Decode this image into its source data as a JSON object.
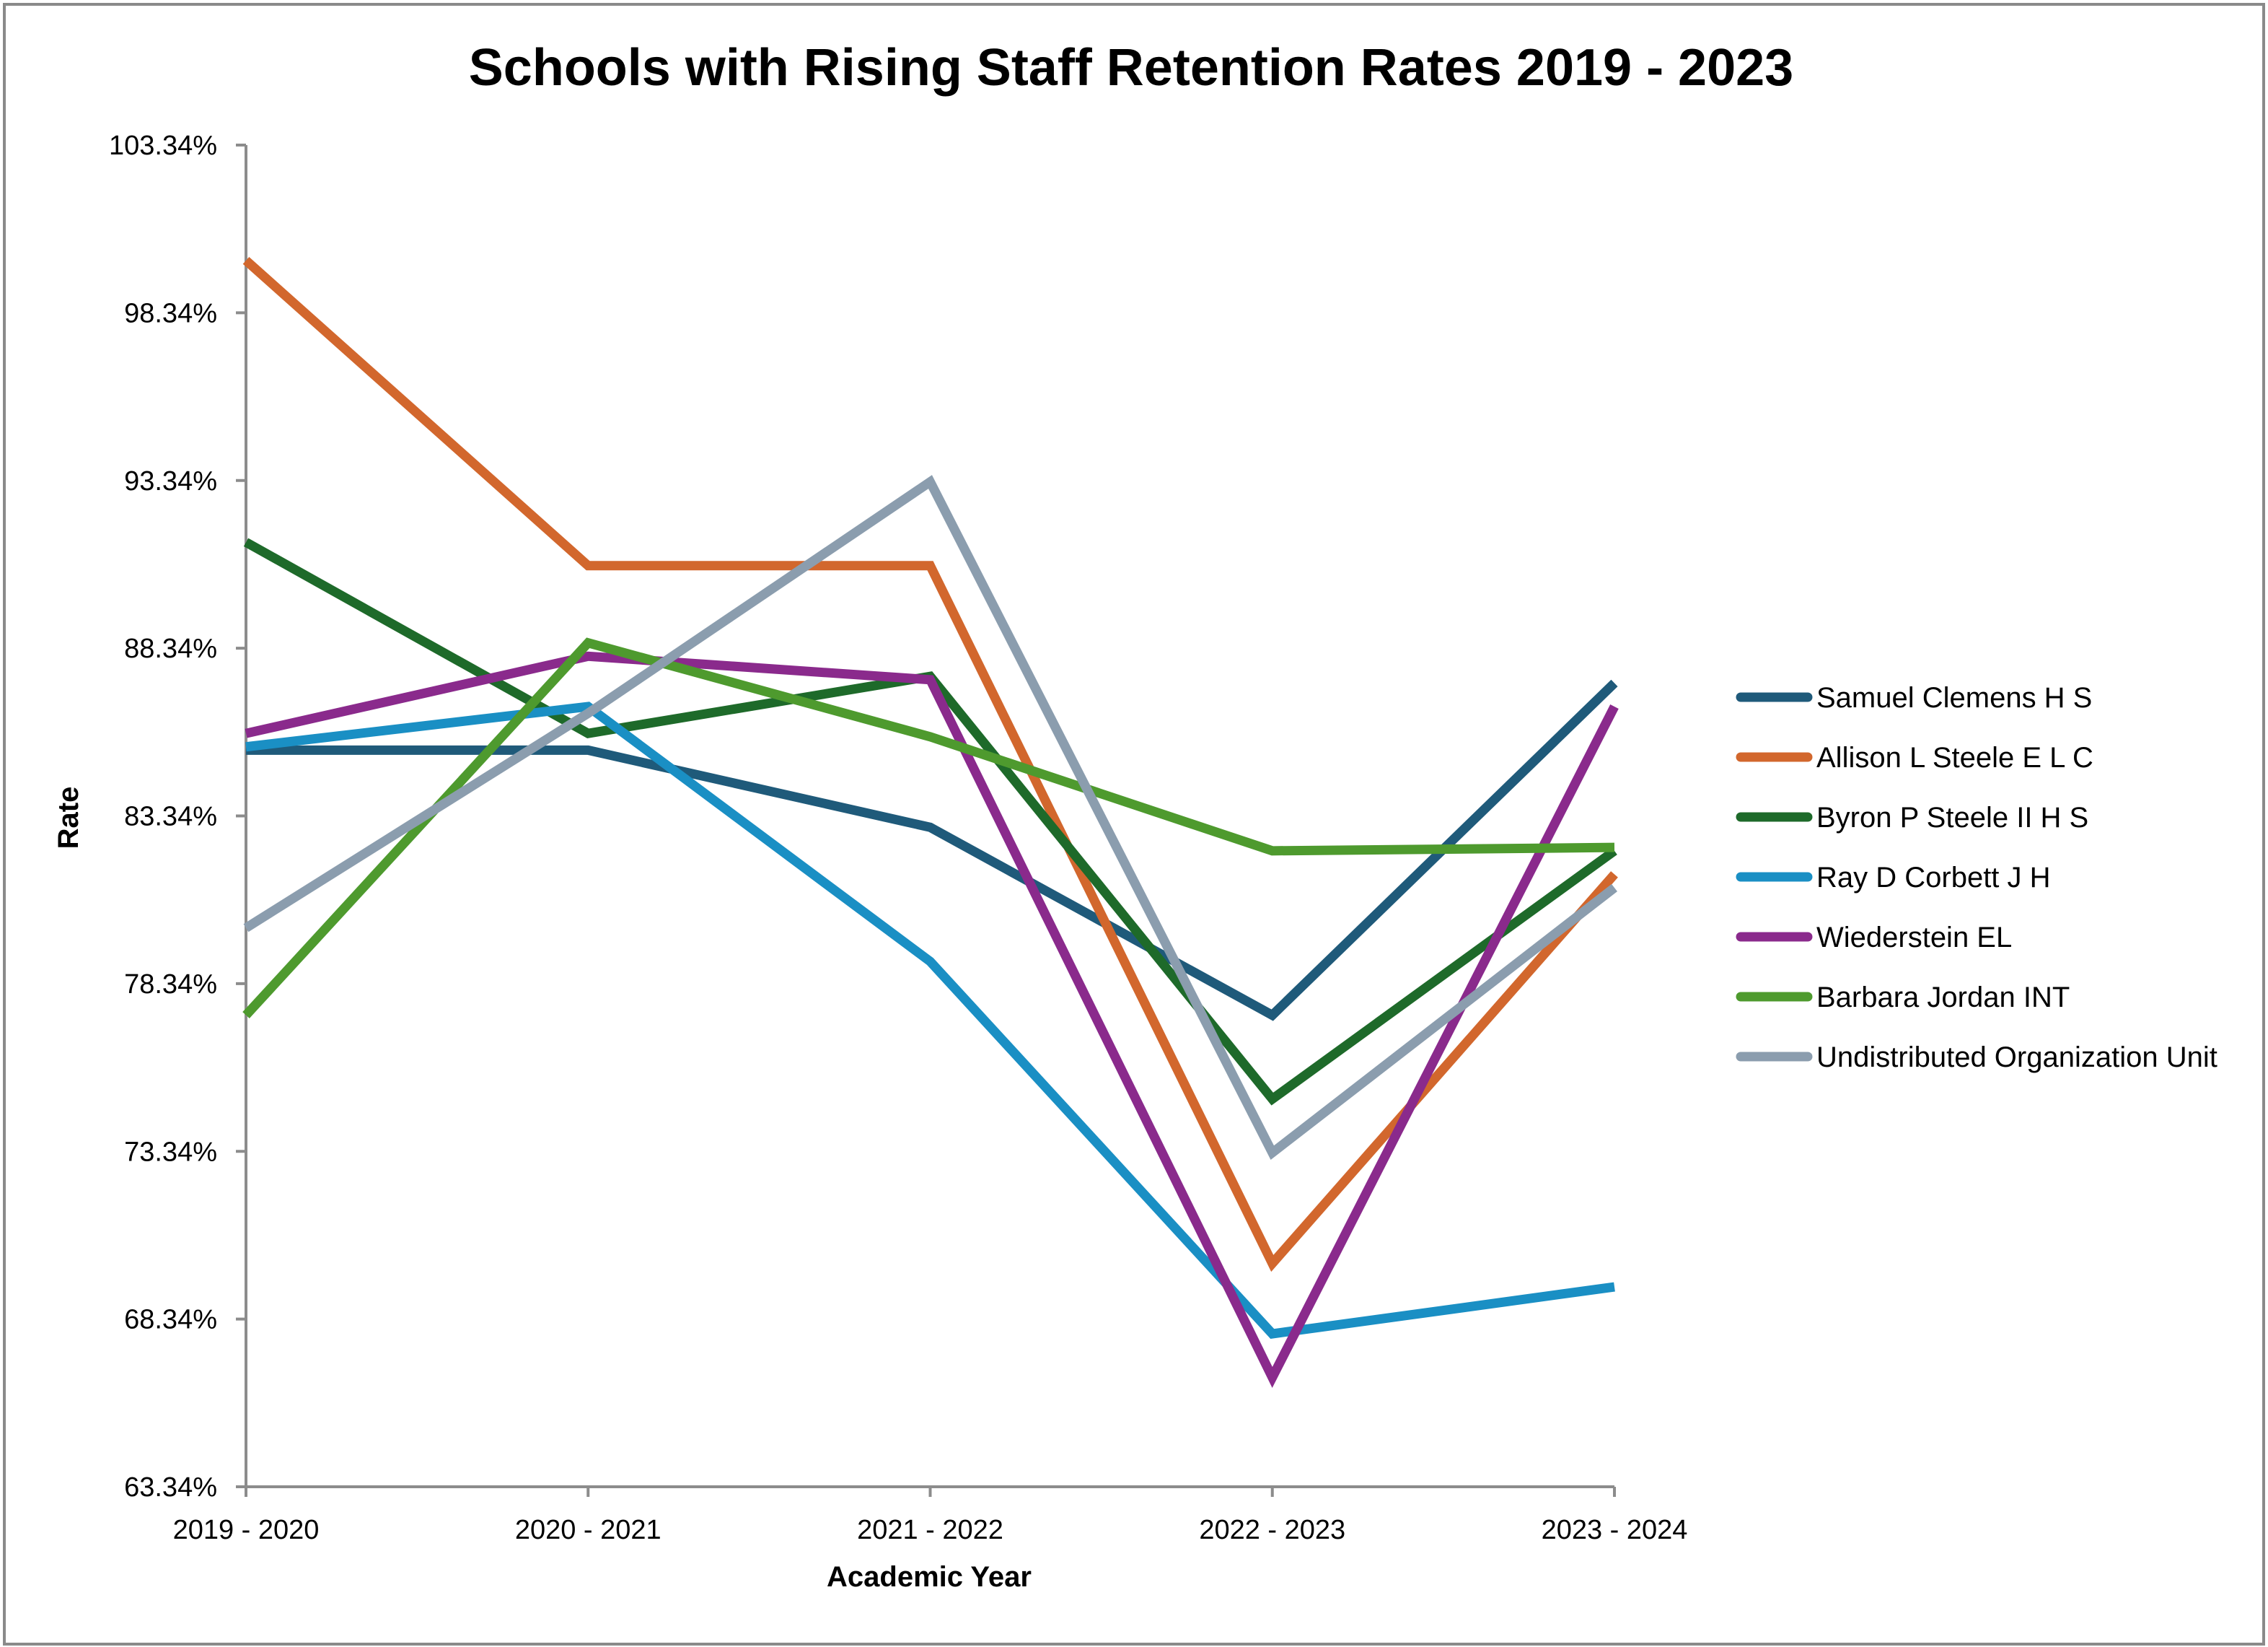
{
  "chart_data": {
    "type": "line",
    "title": "Schools with Rising Staff Retention Rates 2019 - 2023",
    "xlabel": "Academic Year",
    "ylabel": "Rate",
    "ylim": [
      63.34,
      103.34
    ],
    "yticks": [
      "63.34%",
      "68.34%",
      "73.34%",
      "78.34%",
      "83.34%",
      "88.34%",
      "93.34%",
      "98.34%",
      "103.34%"
    ],
    "categories": [
      "2019 - 2020",
      "2020 - 2021",
      "2021 - 2022",
      "2022 - 2023",
      "2023 - 2024"
    ],
    "grid": false,
    "legend_position": "right",
    "series": [
      {
        "name": "Samuel Clemens H S",
        "color": "#1f5a7a",
        "values": [
          85.3,
          85.3,
          83.0,
          77.4,
          87.3
        ]
      },
      {
        "name": "Allison L Steele E L C",
        "color": "#d2672d",
        "values": [
          99.9,
          90.8,
          90.8,
          70.0,
          81.6
        ]
      },
      {
        "name": "Byron P Steele II H S",
        "color": "#1e6a2a",
        "values": [
          91.5,
          85.8,
          87.5,
          74.9,
          82.3
        ]
      },
      {
        "name": "Ray D Corbett J H",
        "color": "#1a8fc4",
        "values": [
          85.4,
          86.6,
          79.0,
          67.9,
          69.3
        ]
      },
      {
        "name": "Wiederstein EL",
        "color": "#8a2a8c",
        "values": [
          85.8,
          88.1,
          87.4,
          66.6,
          86.6
        ]
      },
      {
        "name": "Barbara Jordan INT",
        "color": "#4e9a2e",
        "values": [
          77.4,
          88.5,
          85.7,
          82.3,
          82.4
        ]
      },
      {
        "name": "Undistributed Organization Unit",
        "color": "#8b9dae",
        "values": [
          80.0,
          86.4,
          93.3,
          73.3,
          81.2
        ]
      }
    ]
  }
}
